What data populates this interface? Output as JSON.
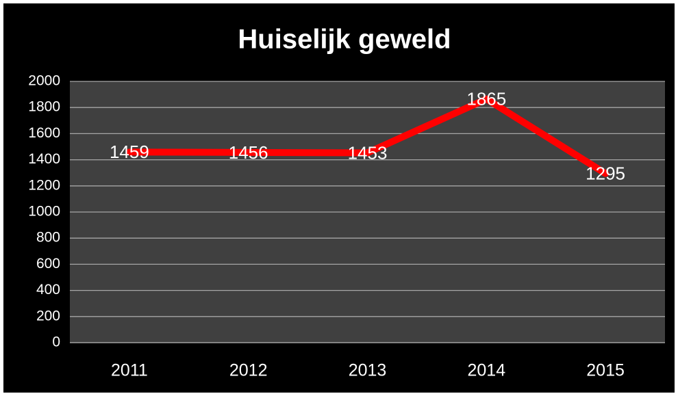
{
  "chart_data": {
    "type": "line",
    "title": "Huiselijk geweld",
    "categories": [
      "2011",
      "2012",
      "2013",
      "2014",
      "2015"
    ],
    "values": [
      1459,
      1456,
      1453,
      1865,
      1295
    ],
    "color": "#ff0000",
    "ylim": [
      0,
      2000
    ],
    "yticks": [
      0,
      200,
      400,
      600,
      800,
      1000,
      1200,
      1400,
      1600,
      1800,
      2000
    ],
    "grid": true
  }
}
